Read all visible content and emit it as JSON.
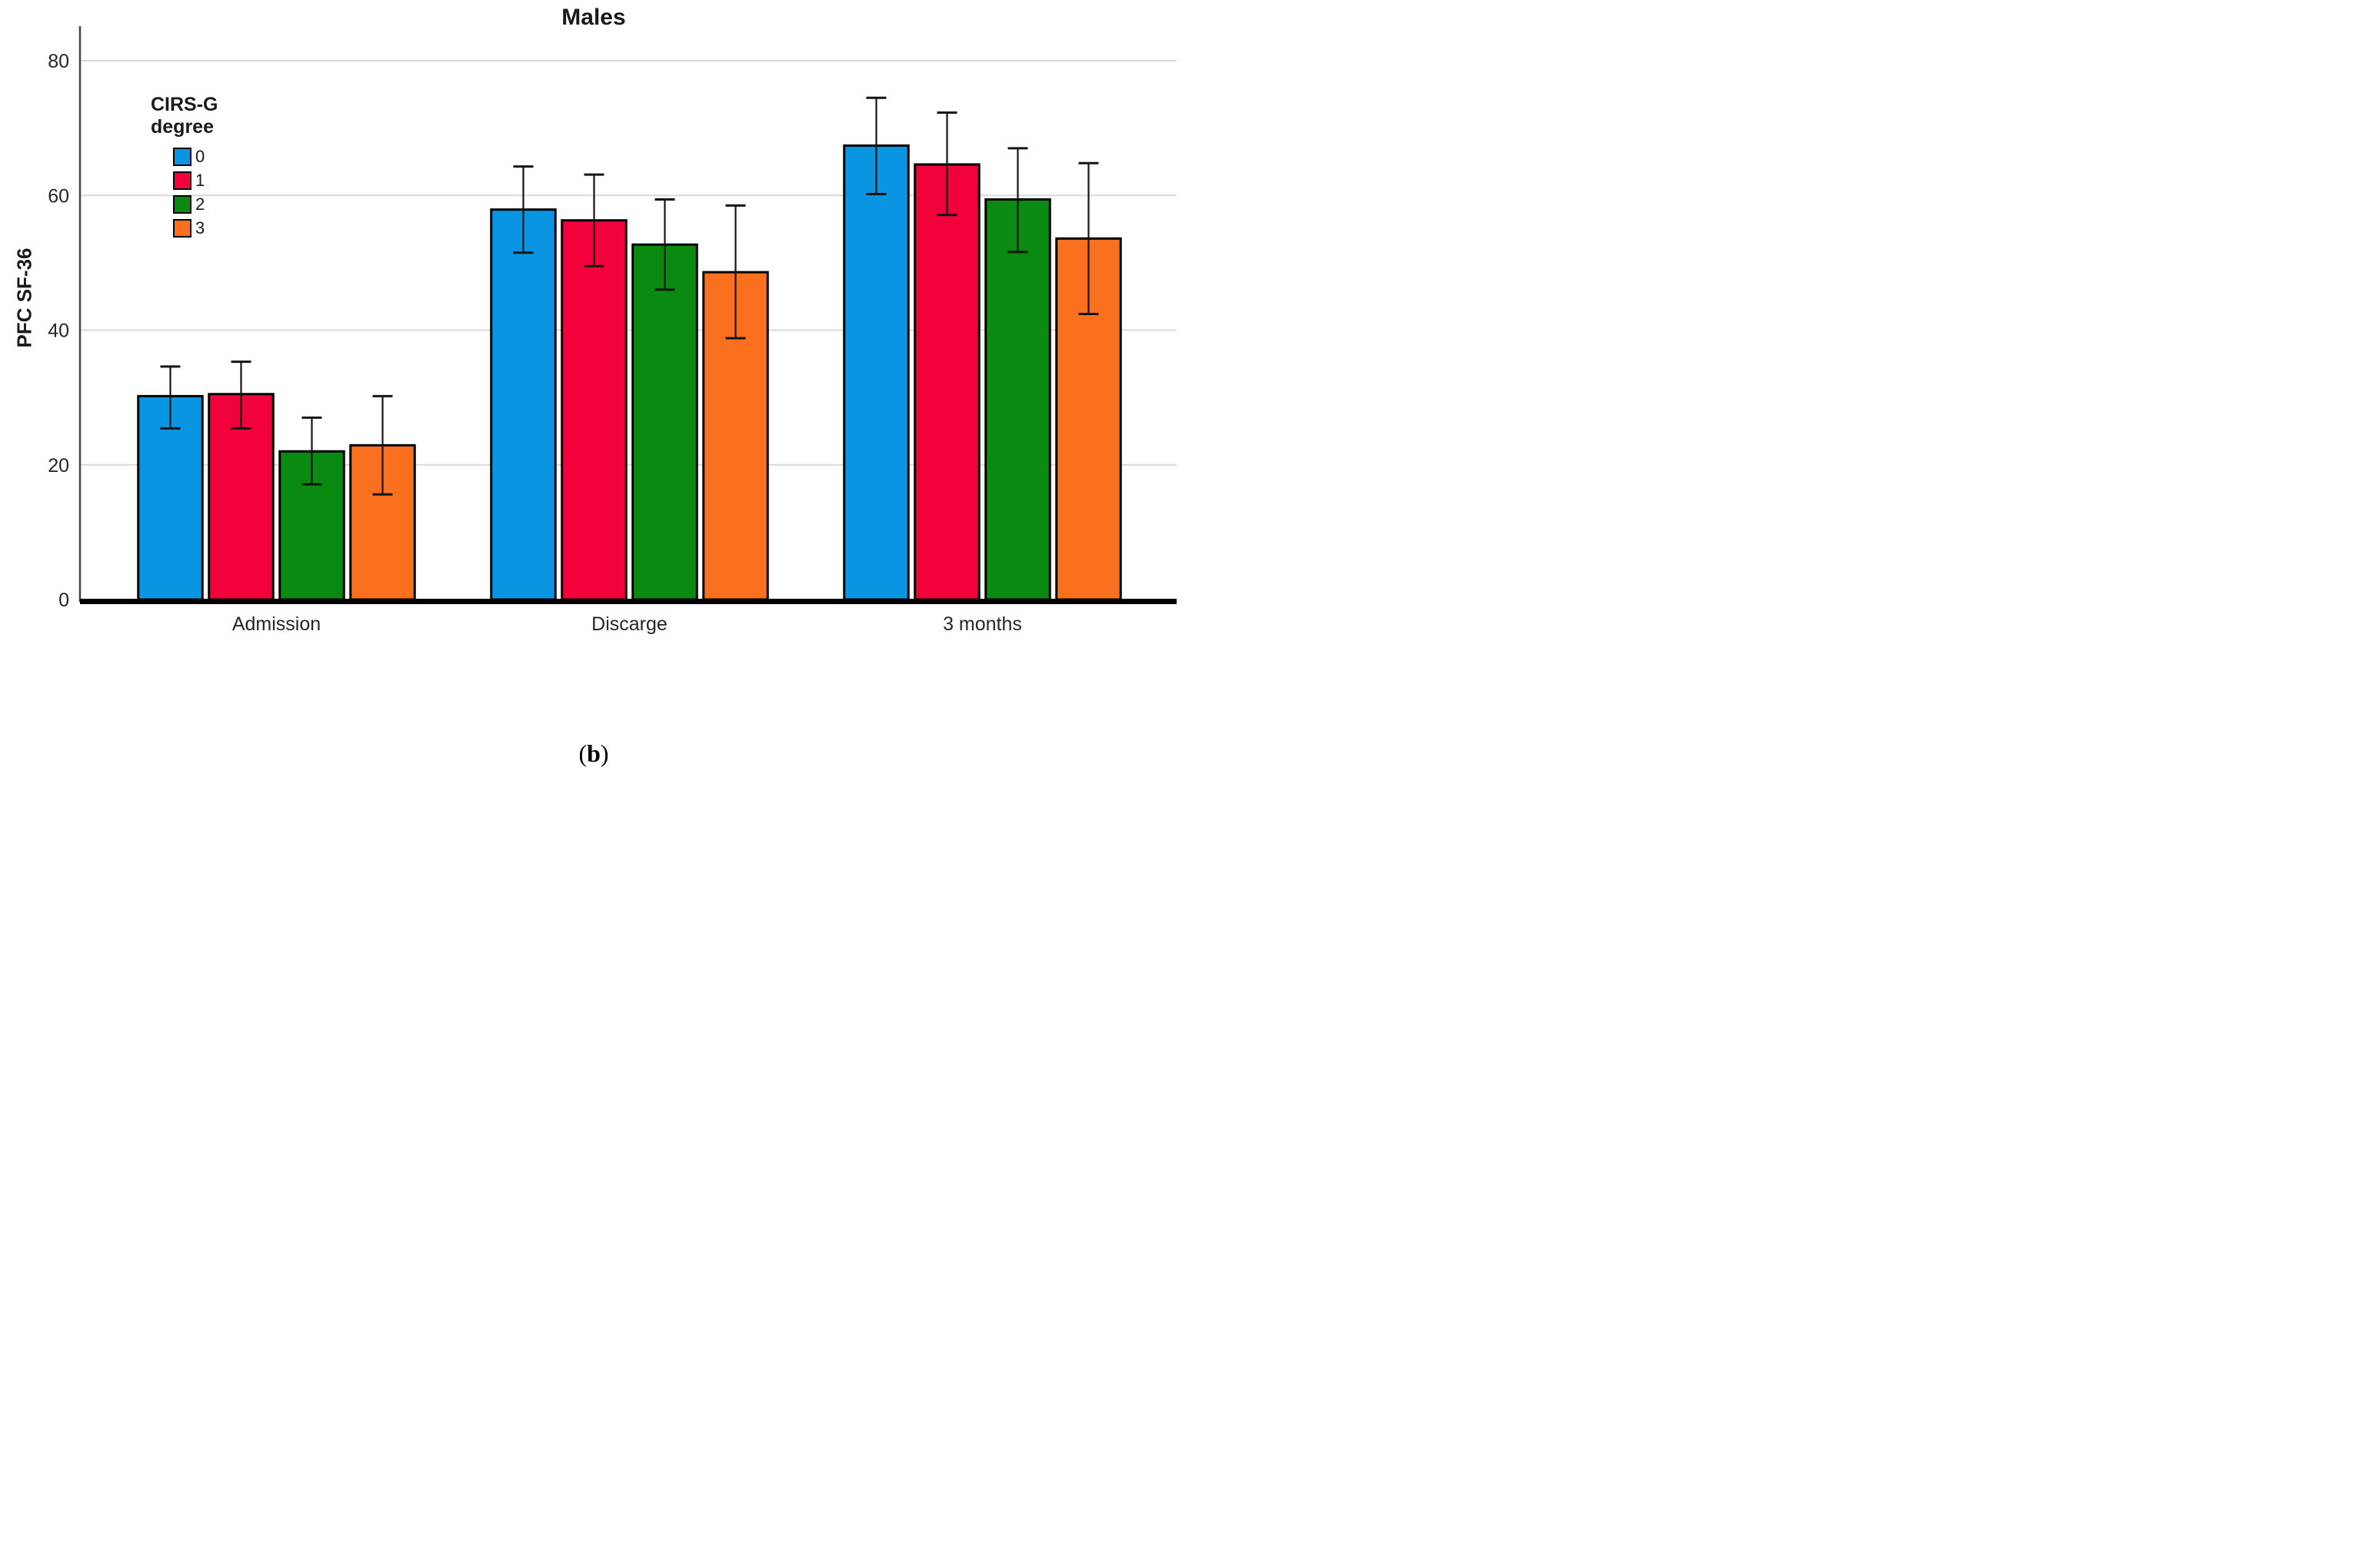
{
  "chart_data": {
    "type": "bar",
    "title": "Males",
    "xlabel": "",
    "ylabel": "PFC SF-36",
    "categories": [
      "Admission",
      "Discarge",
      "3 months"
    ],
    "y_ticks": [
      0,
      20,
      40,
      60,
      80
    ],
    "ylim": [
      0,
      80
    ],
    "grid": "horizontal",
    "legend": {
      "title_lines": [
        "CIRS-G",
        "degree"
      ],
      "position": "upper-left-inside"
    },
    "series": [
      {
        "name": "0",
        "color": "#0A95E2",
        "values": [
          30.2,
          57.9,
          67.4
        ],
        "ci_low": [
          25.4,
          51.5,
          60.2
        ],
        "ci_high": [
          34.6,
          64.3,
          74.5
        ]
      },
      {
        "name": "1",
        "color": "#F1023B",
        "values": [
          30.5,
          56.3,
          64.6
        ],
        "ci_low": [
          25.4,
          49.5,
          57.1
        ],
        "ci_high": [
          35.3,
          63.1,
          72.3
        ]
      },
      {
        "name": "2",
        "color": "#0B8A12",
        "values": [
          22.0,
          52.7,
          59.4
        ],
        "ci_low": [
          17.1,
          46.0,
          51.6
        ],
        "ci_high": [
          27.0,
          59.4,
          67.0
        ]
      },
      {
        "name": "3",
        "color": "#FA701E",
        "values": [
          22.9,
          48.6,
          53.6
        ],
        "ci_low": [
          15.6,
          38.8,
          42.4
        ],
        "ci_high": [
          30.2,
          58.5,
          64.8
        ]
      }
    ]
  },
  "caption": {
    "open": "(",
    "letter": "b",
    "close": ")"
  }
}
